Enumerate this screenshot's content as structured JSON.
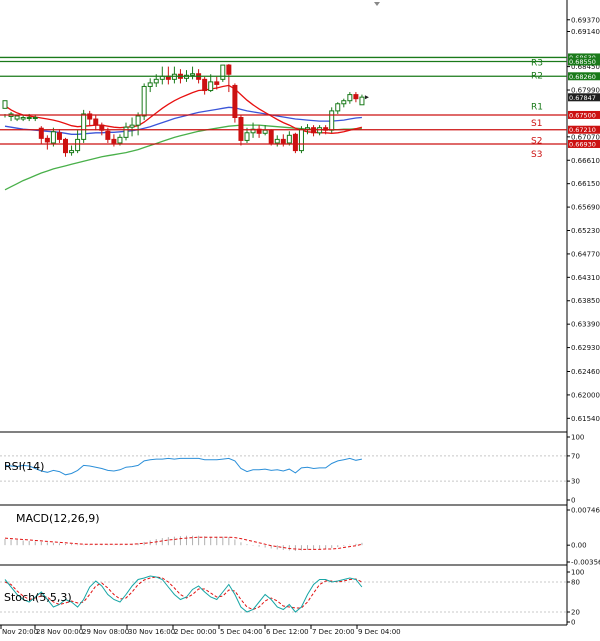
{
  "chart_data": {
    "type": "candlestick",
    "colors": {
      "bull": "#1a7a1a",
      "bear": "#cc1111",
      "resistance": "#1a7a1a",
      "support": "#cc1111",
      "ema_fast": "#e81010",
      "ema_mid": "#3b55d8",
      "ema_slow": "#49b04a",
      "rsi_line": "#2b8fd9",
      "macd_hist": "#b0b0b0",
      "macd_signal": "#e11111",
      "stoch_main": "#17a5a5",
      "stoch_signal": "#e11111",
      "current_price": "#202020"
    },
    "main_panel": {
      "y_ticks": [
        "0.69370",
        "0.69140",
        "0.68450",
        "0.67990",
        "0.67070",
        "0.66610",
        "0.66150",
        "0.65690",
        "0.65230",
        "0.64770",
        "0.64310",
        "0.63850",
        "0.63390",
        "0.62930",
        "0.62460",
        "0.62000",
        "0.61540"
      ],
      "y_range": [
        0.6135,
        0.6968
      ],
      "levels": [
        {
          "name": "R3",
          "value": 0.6863,
          "price_label": "0.68630",
          "kind": "resistance"
        },
        {
          "name": "R2",
          "value": 0.6855,
          "price_label": "0.68550",
          "kind": "resistance"
        },
        {
          "name": "R1",
          "value": 0.6826,
          "price_label": "0.68260",
          "kind": "resistance"
        },
        {
          "name": "S1",
          "value": 0.675,
          "price_label": "0.67500",
          "kind": "support"
        },
        {
          "name": "S2",
          "value": 0.6721,
          "price_label": "0.67210",
          "kind": "support"
        },
        {
          "name": "S3",
          "value": 0.6693,
          "price_label": "0.66930",
          "kind": "support"
        }
      ],
      "current_price": {
        "value": 0.67847,
        "label": "0.67847"
      },
      "candles": [
        [
          0.6763,
          0.6778,
          0.6752,
          0.6745
        ],
        [
          0.6747,
          0.6752,
          0.6756,
          0.6738
        ],
        [
          0.6742,
          0.6748,
          0.675,
          0.6738
        ],
        [
          0.6742,
          0.6745,
          0.675,
          0.6738
        ],
        [
          0.6745,
          0.6745,
          0.6752,
          0.6738
        ],
        [
          0.6744,
          0.6745,
          0.675,
          0.6738
        ],
        [
          0.6724,
          0.6704,
          0.6728,
          0.6692
        ],
        [
          0.6704,
          0.6697,
          0.671,
          0.6682
        ],
        [
          0.6695,
          0.6717,
          0.6725,
          0.6688
        ],
        [
          0.6715,
          0.6702,
          0.6722,
          0.6695
        ],
        [
          0.6702,
          0.6676,
          0.6705,
          0.6668
        ],
        [
          0.6676,
          0.668,
          0.669,
          0.667
        ],
        [
          0.668,
          0.6702,
          0.672,
          0.6675
        ],
        [
          0.6702,
          0.6752,
          0.676,
          0.6695
        ],
        [
          0.6752,
          0.6742,
          0.6758,
          0.673
        ],
        [
          0.6742,
          0.673,
          0.675,
          0.672
        ],
        [
          0.673,
          0.672,
          0.6735,
          0.671
        ],
        [
          0.6718,
          0.6702,
          0.6725,
          0.6695
        ],
        [
          0.6702,
          0.6695,
          0.6712,
          0.6688
        ],
        [
          0.6695,
          0.6706,
          0.6712,
          0.669
        ],
        [
          0.6706,
          0.6726,
          0.6735,
          0.67
        ],
        [
          0.6726,
          0.673,
          0.6745,
          0.6708
        ],
        [
          0.673,
          0.6748,
          0.6755,
          0.671
        ],
        [
          0.6748,
          0.6806,
          0.6812,
          0.674
        ],
        [
          0.6806,
          0.6813,
          0.6822,
          0.6795
        ],
        [
          0.6813,
          0.682,
          0.683,
          0.6805
        ],
        [
          0.682,
          0.6826,
          0.6845,
          0.681
        ],
        [
          0.6826,
          0.682,
          0.6845,
          0.681
        ],
        [
          0.682,
          0.683,
          0.6845,
          0.6812
        ],
        [
          0.683,
          0.6822,
          0.684,
          0.6812
        ],
        [
          0.6822,
          0.6828,
          0.6838,
          0.6815
        ],
        [
          0.6828,
          0.6831,
          0.6845,
          0.682
        ],
        [
          0.6831,
          0.682,
          0.684,
          0.6812
        ],
        [
          0.682,
          0.6798,
          0.6825,
          0.679
        ],
        [
          0.6798,
          0.6815,
          0.683,
          0.6795
        ],
        [
          0.6815,
          0.681,
          0.6825,
          0.68
        ],
        [
          0.682,
          0.6848,
          0.6848,
          0.6815
        ],
        [
          0.6848,
          0.683,
          0.685,
          0.6795
        ],
        [
          0.6808,
          0.6745,
          0.6812,
          0.6735
        ],
        [
          0.6745,
          0.67,
          0.675,
          0.669
        ],
        [
          0.67,
          0.6715,
          0.6725,
          0.6695
        ],
        [
          0.6715,
          0.6722,
          0.6735,
          0.6705
        ],
        [
          0.6722,
          0.6714,
          0.673,
          0.6705
        ],
        [
          0.6714,
          0.672,
          0.673,
          0.671
        ],
        [
          0.672,
          0.6695,
          0.6722,
          0.669
        ],
        [
          0.6695,
          0.6702,
          0.671,
          0.6688
        ],
        [
          0.6702,
          0.6695,
          0.6712,
          0.6688
        ],
        [
          0.6695,
          0.671,
          0.6718,
          0.669
        ],
        [
          0.6712,
          0.668,
          0.6715,
          0.6675
        ],
        [
          0.668,
          0.6722,
          0.6728,
          0.6675
        ],
        [
          0.6722,
          0.6725,
          0.6732,
          0.6712
        ],
        [
          0.6725,
          0.6715,
          0.673,
          0.6708
        ],
        [
          0.6715,
          0.6725,
          0.673,
          0.671
        ],
        [
          0.6725,
          0.672,
          0.673,
          0.6712
        ],
        [
          0.672,
          0.6758,
          0.6765,
          0.6715
        ],
        [
          0.6758,
          0.6772,
          0.6775,
          0.6752
        ],
        [
          0.6772,
          0.6778,
          0.6782,
          0.6765
        ],
        [
          0.6778,
          0.679,
          0.6795,
          0.6772
        ],
        [
          0.679,
          0.6782,
          0.6795,
          0.6775
        ],
        [
          0.677,
          0.6785,
          0.679,
          0.677
        ]
      ],
      "ema_fast": [
        0.6768,
        0.676,
        0.6754,
        0.675,
        0.6748,
        0.6746,
        0.6744,
        0.6742,
        0.674,
        0.6737,
        0.6733,
        0.6729,
        0.6727,
        0.6728,
        0.6729,
        0.673,
        0.673,
        0.6728,
        0.6726,
        0.6725,
        0.6726,
        0.6727,
        0.6729,
        0.6736,
        0.6745,
        0.6754,
        0.6763,
        0.6771,
        0.6778,
        0.6784,
        0.6789,
        0.6794,
        0.6798,
        0.6799,
        0.6801,
        0.6803,
        0.6806,
        0.6808,
        0.6801,
        0.679,
        0.6779,
        0.677,
        0.6762,
        0.6755,
        0.6748,
        0.6741,
        0.6735,
        0.673,
        0.6724,
        0.672,
        0.6717,
        0.6716,
        0.6715,
        0.6715,
        0.6714,
        0.6715,
        0.6717,
        0.672,
        0.6723,
        0.6726
      ],
      "ema_mid": [
        0.6728,
        0.6726,
        0.6724,
        0.6722,
        0.6721,
        0.672,
        0.6719,
        0.6718,
        0.6717,
        0.6716,
        0.6714,
        0.6712,
        0.6712,
        0.6713,
        0.6714,
        0.6715,
        0.6715,
        0.6716,
        0.6716,
        0.6717,
        0.6718,
        0.6719,
        0.6721,
        0.6724,
        0.6727,
        0.6731,
        0.6735,
        0.6739,
        0.6743,
        0.6746,
        0.6749,
        0.6752,
        0.6755,
        0.6757,
        0.6759,
        0.6761,
        0.6763,
        0.6765,
        0.6764,
        0.6761,
        0.6758,
        0.6756,
        0.6754,
        0.6752,
        0.675,
        0.6748,
        0.6746,
        0.6744,
        0.6742,
        0.6741,
        0.674,
        0.6739,
        0.6738,
        0.6738,
        0.6738,
        0.6739,
        0.674,
        0.6742,
        0.6744,
        0.6745
      ],
      "ema_slow": [
        0.6603,
        0.6609,
        0.6615,
        0.6621,
        0.6626,
        0.6631,
        0.6636,
        0.664,
        0.6644,
        0.6647,
        0.665,
        0.6653,
        0.6656,
        0.6659,
        0.6662,
        0.6665,
        0.6668,
        0.667,
        0.6672,
        0.6674,
        0.6676,
        0.6679,
        0.6682,
        0.6686,
        0.669,
        0.6694,
        0.6698,
        0.6702,
        0.6706,
        0.6709,
        0.6712,
        0.6715,
        0.6718,
        0.672,
        0.6722,
        0.6724,
        0.6726,
        0.6728,
        0.6729,
        0.673,
        0.673,
        0.673,
        0.673,
        0.6729,
        0.6728,
        0.6727,
        0.6726,
        0.6725,
        0.6724,
        0.6723,
        0.6722,
        0.6722,
        0.6721,
        0.6721,
        0.6721,
        0.6721,
        0.6722,
        0.6722,
        0.6723,
        0.6723
      ]
    },
    "rsi_panel": {
      "label": "RSI(14)",
      "y_ticks": [
        "100",
        "70",
        "30",
        "0"
      ],
      "values": [
        55,
        54,
        53,
        55,
        54,
        50,
        46,
        44,
        47,
        45,
        40,
        42,
        47,
        55,
        54,
        52,
        50,
        47,
        46,
        48,
        52,
        53,
        55,
        62,
        64,
        65,
        65,
        66,
        65,
        66,
        66,
        66,
        66,
        64,
        64,
        64,
        65,
        66,
        62,
        50,
        45,
        48,
        48,
        49,
        47,
        48,
        46,
        49,
        43,
        51,
        52,
        50,
        51,
        51,
        58,
        62,
        64,
        66,
        63,
        65
      ]
    },
    "macd_panel": {
      "label": "MACD(12,26,9)",
      "y_ticks": [
        "0.007464",
        "0.00",
        "-0.003568"
      ],
      "histogram": [
        0.0013,
        0.0012,
        0.0011,
        0.001,
        0.0009,
        0.0008,
        0.0007,
        0.0006,
        0.0005,
        0.0004,
        0.0003,
        0.0002,
        0.0001,
        0.0001,
        0.0001,
        0.0002,
        0.0002,
        0.0001,
        0.0001,
        0.0001,
        0.0002,
        0.0003,
        0.0004,
        0.0007,
        0.001,
        0.0013,
        0.0015,
        0.0017,
        0.0018,
        0.0019,
        0.002,
        0.002,
        0.002,
        0.0019,
        0.0018,
        0.0018,
        0.0018,
        0.0017,
        0.0012,
        0.0006,
        0.0002,
        -0.0001,
        -0.0003,
        -0.0005,
        -0.0007,
        -0.0009,
        -0.001,
        -0.0011,
        -0.0012,
        -0.0011,
        -0.001,
        -0.0009,
        -0.0008,
        -0.0007,
        -0.0006,
        -0.0004,
        -0.0002,
        0.0001,
        0.0003,
        0.0005
      ],
      "signal": [
        0.0015,
        0.0014,
        0.0013,
        0.0012,
        0.0011,
        0.001,
        0.0009,
        0.0008,
        0.0007,
        0.0006,
        0.0005,
        0.0004,
        0.0003,
        0.0002,
        0.0002,
        0.0002,
        0.0002,
        0.0002,
        0.0002,
        0.0002,
        0.0002,
        0.0002,
        0.0003,
        0.0004,
        0.0005,
        0.0007,
        0.0009,
        0.0011,
        0.0012,
        0.0014,
        0.0015,
        0.0016,
        0.0017,
        0.0017,
        0.0017,
        0.0017,
        0.0017,
        0.0017,
        0.0016,
        0.0014,
        0.0011,
        0.0008,
        0.0005,
        0.0002,
        -0.0001,
        -0.0003,
        -0.0005,
        -0.0007,
        -0.0008,
        -0.0009,
        -0.0009,
        -0.0009,
        -0.0009,
        -0.0008,
        -0.0008,
        -0.0007,
        -0.0005,
        -0.0003,
        -0.0001,
        0.0002
      ]
    },
    "stoch_panel": {
      "label": "Stoch(5,5,3)",
      "y_ticks": [
        "100",
        "80",
        "20",
        "0"
      ],
      "k": [
        85,
        70,
        55,
        45,
        40,
        50,
        60,
        45,
        30,
        35,
        45,
        40,
        30,
        45,
        70,
        82,
        72,
        55,
        45,
        40,
        55,
        72,
        85,
        88,
        92,
        90,
        85,
        70,
        55,
        45,
        50,
        65,
        72,
        60,
        50,
        45,
        60,
        75,
        55,
        30,
        20,
        25,
        40,
        55,
        45,
        30,
        25,
        35,
        20,
        30,
        55,
        75,
        85,
        85,
        80,
        82,
        85,
        88,
        85,
        70
      ],
      "d": [
        80,
        75,
        62,
        52,
        45,
        48,
        52,
        50,
        40,
        35,
        38,
        42,
        38,
        40,
        55,
        72,
        78,
        68,
        55,
        46,
        48,
        60,
        75,
        84,
        88,
        90,
        88,
        80,
        68,
        55,
        48,
        55,
        66,
        66,
        58,
        50,
        52,
        64,
        62,
        45,
        30,
        25,
        30,
        42,
        48,
        42,
        32,
        30,
        28,
        28,
        40,
        58,
        75,
        82,
        82,
        80,
        82,
        85,
        86,
        80
      ]
    },
    "x_labels": [
      "Nov 20:00",
      "28 Nov 00:00",
      "29 Nov 08:00",
      "30 Nov 16:00",
      "2 Dec 00:00",
      "5 Dec 04:00",
      "6 Dec 12:00",
      "7 Dec 20:00",
      "9 Dec 04:00"
    ]
  }
}
